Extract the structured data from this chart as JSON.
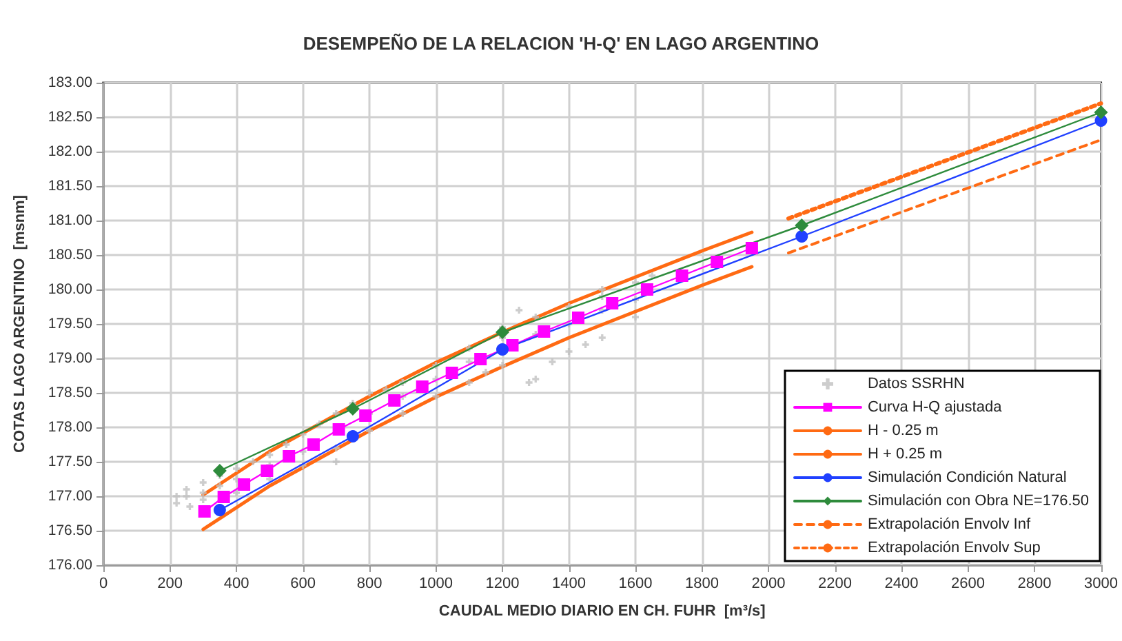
{
  "chart_data": {
    "type": "line",
    "title": "DESEMPEÑO DE LA RELACION 'H-Q' EN LAGO ARGENTINO",
    "xlabel": "CAUDAL MEDIO DIARIO EN CH. FUHR  [m³/s]",
    "ylabel": "COTAS LAGO ARGENTINO  [msnm]",
    "xlim": [
      0,
      3000
    ],
    "xticks": [
      0,
      200,
      400,
      600,
      800,
      1000,
      1200,
      1400,
      1600,
      1800,
      2000,
      2200,
      2400,
      2600,
      2800,
      3000
    ],
    "ylim": [
      176,
      183
    ],
    "yticks": [
      {
        "value": 176,
        "label": "176.00"
      },
      {
        "value": 176.5,
        "label": "176.50"
      },
      {
        "value": 177,
        "label": "177.00"
      },
      {
        "value": 177.5,
        "label": "177.50"
      },
      {
        "value": 178,
        "label": "178.00"
      },
      {
        "value": 178.5,
        "label": "178.50"
      },
      {
        "value": 179,
        "label": "179.00"
      },
      {
        "value": 179.5,
        "label": "179.50"
      },
      {
        "value": 180,
        "label": "180.00"
      },
      {
        "value": 180.5,
        "label": "180.50"
      },
      {
        "value": 181,
        "label": "181.00"
      },
      {
        "value": 181.5,
        "label": "181.50"
      },
      {
        "value": 182,
        "label": "182.00"
      },
      {
        "value": 182.5,
        "label": "182.50"
      },
      {
        "value": 183,
        "label": "183.00"
      }
    ],
    "grid": true,
    "legend": "bottom right",
    "series": [
      {
        "name": "Datos SSRHN",
        "type": "scatter",
        "marker": "cross",
        "color": "#c0c0c0",
        "x": [
          220,
          250,
          300,
          350,
          400,
          450,
          500,
          550,
          600,
          650,
          700,
          750,
          800,
          850,
          900,
          1000,
          1100,
          1200,
          1250,
          1300,
          1400,
          1500,
          1500,
          1600,
          1650,
          220,
          260,
          300,
          400,
          500,
          600,
          700,
          800,
          900,
          1000,
          1100,
          1200,
          1300,
          1400,
          1500,
          1600,
          250,
          300,
          350,
          400,
          500,
          600,
          700,
          800,
          900,
          1000,
          1100,
          1200,
          1300,
          1400,
          1500,
          1600,
          1150,
          1280,
          1350,
          1450
        ],
        "values": [
          177.0,
          177.1,
          177.2,
          177.3,
          177.4,
          177.5,
          177.6,
          177.75,
          177.9,
          178.05,
          178.2,
          178.35,
          178.5,
          178.55,
          178.65,
          178.9,
          179.15,
          179.45,
          179.7,
          179.6,
          179.75,
          179.9,
          180.0,
          180.1,
          180.2,
          176.9,
          176.85,
          176.95,
          177.05,
          177.25,
          177.45,
          177.7,
          177.95,
          178.2,
          178.45,
          178.65,
          178.9,
          178.7,
          179.1,
          179.3,
          179.6,
          177.0,
          177.05,
          177.15,
          177.25,
          177.45,
          177.65,
          177.5,
          178.2,
          178.45,
          178.7,
          178.95,
          179.3,
          179.35,
          179.5,
          179.7,
          179.85,
          178.8,
          178.65,
          178.95,
          179.2
        ]
      },
      {
        "name": "Curva H-Q ajustada",
        "marker": "square",
        "color": "#ff00ff",
        "x": [
          304,
          362,
          423,
          492,
          558,
          632,
          708,
          788,
          875,
          959,
          1048,
          1134,
          1230,
          1325,
          1428,
          1530,
          1635,
          1740,
          1845,
          1950
        ],
        "values": [
          176.78,
          176.99,
          177.17,
          177.37,
          177.58,
          177.75,
          177.97,
          178.17,
          178.39,
          178.59,
          178.79,
          178.99,
          179.19,
          179.39,
          179.59,
          179.8,
          180.0,
          180.2,
          180.4,
          180.6
        ]
      },
      {
        "name": "H - 0.25 m",
        "marker": "none",
        "line_style": "solid",
        "color": "#ff6a13",
        "x": [
          300,
          500,
          800,
          1000,
          1200,
          1400,
          1600,
          1800,
          1950
        ],
        "values": [
          176.52,
          177.15,
          177.95,
          178.44,
          178.88,
          179.3,
          179.68,
          180.06,
          180.33
        ]
      },
      {
        "name": "H + 0.25 m",
        "marker": "none",
        "line_style": "solid",
        "color": "#ff6a13",
        "x": [
          300,
          500,
          800,
          1000,
          1200,
          1400,
          1600,
          1800,
          1950
        ],
        "values": [
          177.02,
          177.65,
          178.45,
          178.94,
          179.38,
          179.8,
          180.18,
          180.56,
          180.83
        ]
      },
      {
        "name": "Simulación Condición Natural",
        "marker": "circle",
        "color": "#2040ff",
        "x": [
          350,
          750,
          1200,
          2100,
          3000
        ],
        "values": [
          176.8,
          177.87,
          179.13,
          180.77,
          182.45
        ]
      },
      {
        "name": "Simulación con Obra NE=176.50",
        "marker": "diamond",
        "color": "#2e8b3c",
        "x": [
          350,
          750,
          1200,
          2100,
          3000
        ],
        "values": [
          177.37,
          178.27,
          179.38,
          180.93,
          182.57
        ]
      },
      {
        "name": "Extrapolación Envolv Inf",
        "marker": "none",
        "line_style": "dashed",
        "color": "#ff6a13",
        "x": [
          2060,
          3000
        ],
        "values": [
          180.53,
          182.17
        ]
      },
      {
        "name": "Extrapolación Envolv Sup",
        "marker": "none",
        "line_style": "dotted",
        "color": "#ff6a13",
        "x": [
          2060,
          3000
        ],
        "values": [
          181.03,
          182.7
        ]
      }
    ]
  }
}
